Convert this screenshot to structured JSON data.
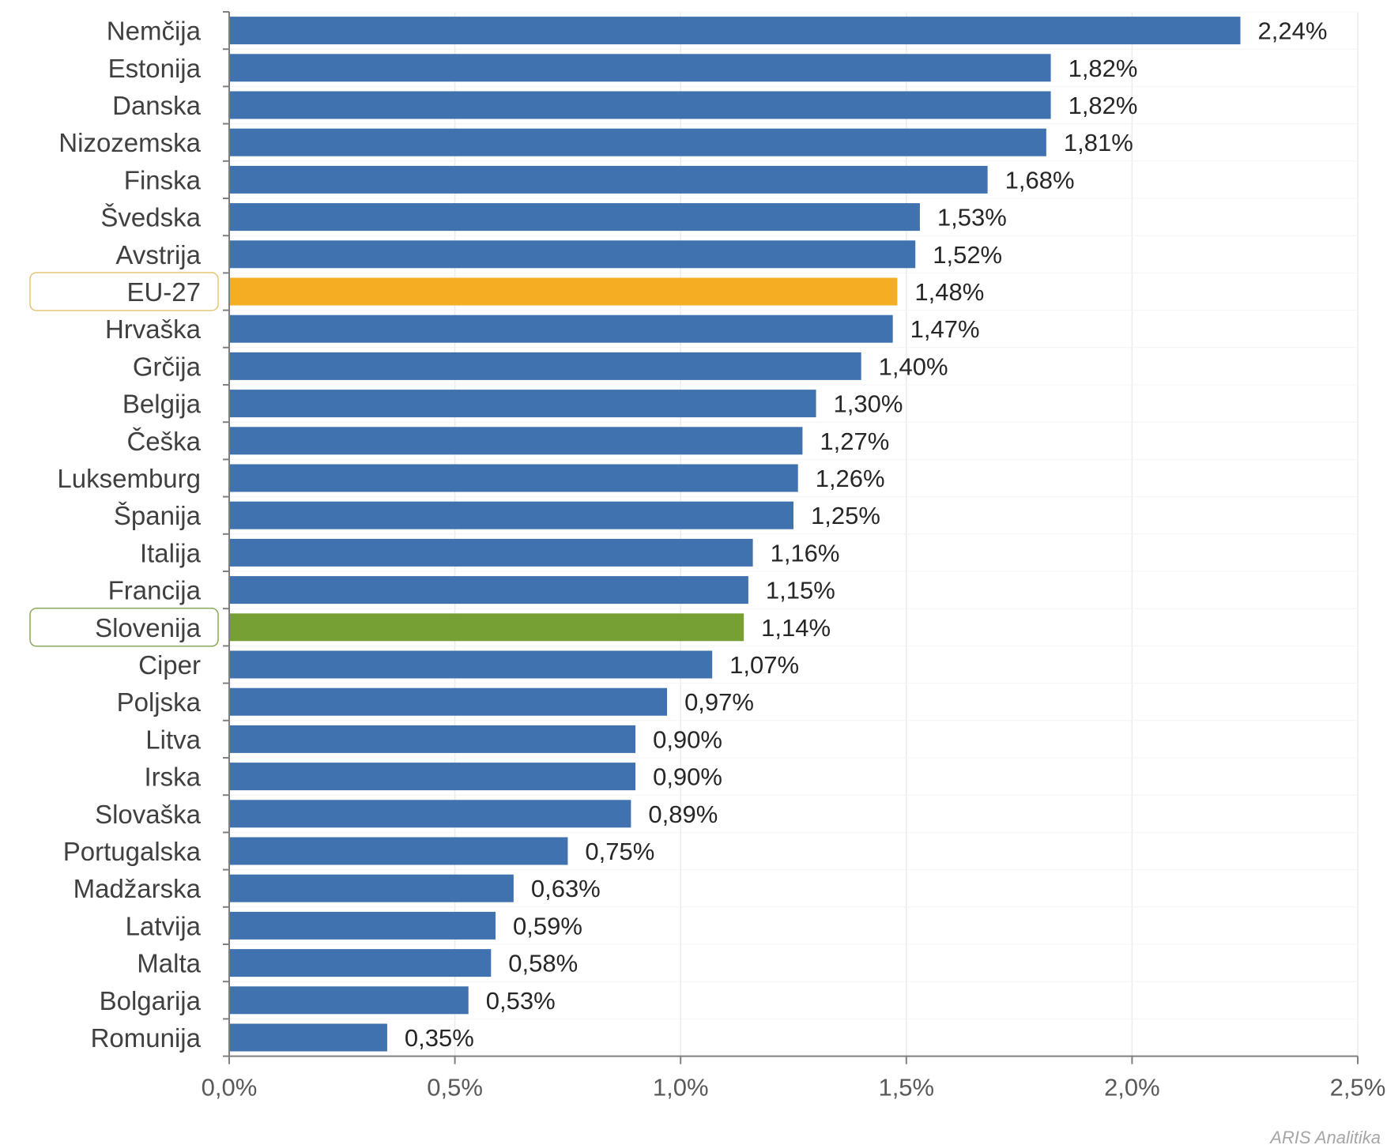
{
  "chart_data": {
    "type": "bar",
    "orientation": "horizontal",
    "categories": [
      "Nemčija",
      "Estonija",
      "Danska",
      "Nizozemska",
      "Finska",
      "Švedska",
      "Avstrija",
      "EU-27",
      "Hrvaška",
      "Grčija",
      "Belgija",
      "Češka",
      "Luksemburg",
      "Španija",
      "Italija",
      "Francija",
      "Slovenija",
      "Ciper",
      "Poljska",
      "Litva",
      "Irska",
      "Slovaška",
      "Portugalska",
      "Madžarska",
      "Latvija",
      "Malta",
      "Bolgarija",
      "Romunija"
    ],
    "values": [
      2.24,
      1.82,
      1.82,
      1.81,
      1.68,
      1.53,
      1.52,
      1.48,
      1.47,
      1.4,
      1.3,
      1.27,
      1.26,
      1.25,
      1.16,
      1.15,
      1.14,
      1.07,
      0.97,
      0.9,
      0.9,
      0.89,
      0.75,
      0.63,
      0.59,
      0.58,
      0.53,
      0.35
    ],
    "value_labels": [
      "2,24%",
      "1,82%",
      "1,82%",
      "1,81%",
      "1,68%",
      "1,53%",
      "1,52%",
      "1,48%",
      "1,47%",
      "1,40%",
      "1,30%",
      "1,27%",
      "1,26%",
      "1,25%",
      "1,16%",
      "1,15%",
      "1,14%",
      "1,07%",
      "0,97%",
      "0,90%",
      "0,90%",
      "0,89%",
      "0,75%",
      "0,63%",
      "0,59%",
      "0,58%",
      "0,53%",
      "0,35%"
    ],
    "xlim": [
      0,
      2.5
    ],
    "x_ticks": [
      0,
      0.5,
      1.0,
      1.5,
      2.0,
      2.5
    ],
    "x_tick_labels": [
      "0,0%",
      "0,5%",
      "1,0%",
      "1,5%",
      "2,0%",
      "2,5%"
    ],
    "title": "",
    "xlabel": "",
    "ylabel": "",
    "grid": "vertical",
    "legend": "none",
    "colors": {
      "default": "#4172b0",
      "highlights": {
        "EU-27": "#f5ad24",
        "Slovenija": "#76a034"
      },
      "grid": "#ececec",
      "axis": "#7f7f7f"
    },
    "boxed_categories": {
      "EU-27": "#e3c573",
      "Slovenija": "#8aa85a"
    }
  },
  "source_note": "ARIS Analitika"
}
